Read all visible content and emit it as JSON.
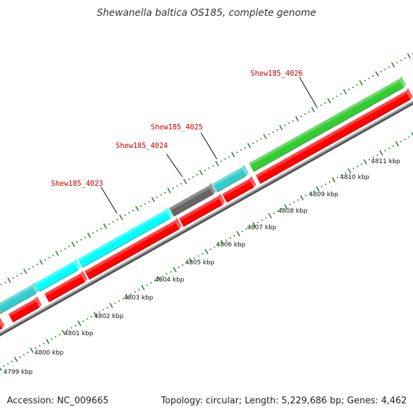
{
  "title": "Shewanella baltica OS185, complete genome",
  "footer": {
    "accession": "Accession: NC_009665",
    "summary": "Topology: circular; Length: 5,229,686 bp; Genes: 4,462"
  },
  "scale_labels": [
    "4799 kbp",
    "4800 kbp",
    "4801 kbp",
    "4802 kbp",
    "4803 kbp",
    "4804 kbp",
    "4805 kbp",
    "4806 kbp",
    "4807 kbp",
    "4808 kbp",
    "4809 kbp",
    "4810 kbp",
    "4811 kbp"
  ],
  "gene_labels": [
    "Shew185_4023",
    "Shew185_4024",
    "Shew185_4025",
    "Shew185_4026"
  ],
  "colors": {
    "cds_forward": "#00ffff",
    "cds_forward_dark": "#33cccc",
    "cds_reverse": "#ff0000",
    "cds_other": "#666666",
    "cds_green": "#33cc33",
    "cds_orange": "#ff9900",
    "backbone": "#888888",
    "ticks": "#228822",
    "label": "#cc0000"
  }
}
